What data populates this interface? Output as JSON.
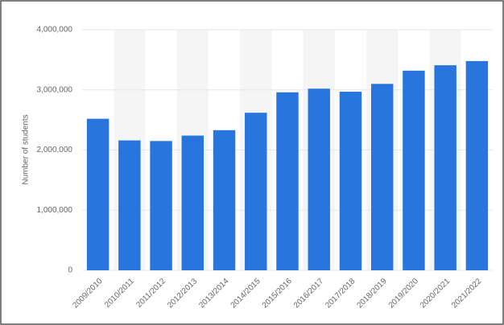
{
  "chart_data": {
    "type": "bar",
    "y_label": "Number of students",
    "categories": [
      "2009/2010",
      "2010/2011",
      "2011/2012",
      "2012/2013",
      "2013/2014",
      "2014/2015",
      "2015/2016",
      "2016/2017",
      "2017/2018",
      "2018/2019",
      "2019/2020",
      "2020/2021",
      "2021/2022"
    ],
    "values": [
      2520000,
      2160000,
      2150000,
      2240000,
      2330000,
      2620000,
      2960000,
      3020000,
      2970000,
      3100000,
      3320000,
      3410000,
      3480000
    ],
    "color": "#2876dd",
    "ylim": [
      0,
      4000000
    ],
    "yticks": [
      0,
      {
        "value": 1000000,
        "label": "1,000,000"
      },
      {
        "value": 2000000,
        "label": "2,000,000"
      },
      {
        "value": 3000000,
        "label": "3,000,000"
      },
      {
        "value": 4000000,
        "label": "4,000,000"
      }
    ],
    "grid": true,
    "alternate_bands": true,
    "band_color": "#f5f5f5"
  }
}
